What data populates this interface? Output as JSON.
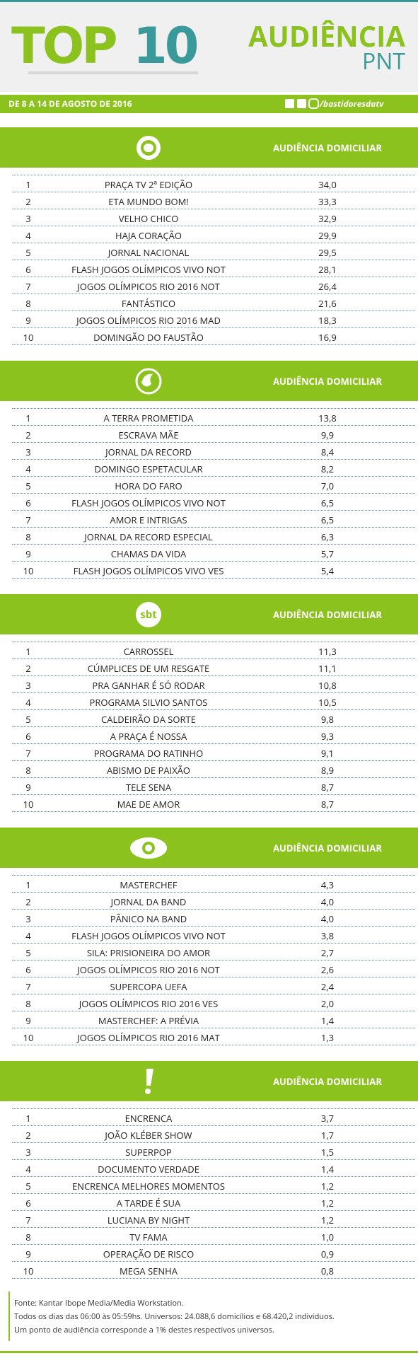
{
  "header": {
    "title_top": "TOP",
    "title_num": "10",
    "brand_line1": "AUDIÊNCIA",
    "brand_line2": "PNT",
    "period": "DE 8 A 14 DE AGOSTO DE 2016",
    "handle": "/bastidoresdatv"
  },
  "sections": [
    {
      "heading": "AUDIÊNCIA DOMICILIAR",
      "rows": [
        [
          1,
          "PRAÇA TV 2ª EDIÇÃO",
          "34,0"
        ],
        [
          2,
          "ETA MUNDO BOM!",
          "33,3"
        ],
        [
          3,
          "VELHO CHICO",
          "32,9"
        ],
        [
          4,
          "HAJA CORAÇÃO",
          "29,9"
        ],
        [
          5,
          "JORNAL NACIONAL",
          "29,5"
        ],
        [
          6,
          "FLASH JOGOS OLÍMPICOS VIVO NOT",
          "28,1"
        ],
        [
          7,
          "JOGOS OLÍMPICOS RIO 2016 NOT",
          "26,4"
        ],
        [
          8,
          "FANTÁSTICO",
          "21,6"
        ],
        [
          9,
          "JOGOS OLÍMPICOS RIO 2016 MAD",
          "18,3"
        ],
        [
          10,
          "DOMINGÃO DO FAUSTÃO",
          "16,9"
        ]
      ]
    },
    {
      "heading": "AUDIÊNCIA DOMICILIAR",
      "rows": [
        [
          1,
          "A TERRA PROMETIDA",
          "13,8"
        ],
        [
          2,
          "ESCRAVA MÃE",
          "9,9"
        ],
        [
          3,
          "JORNAL DA RECORD",
          "8,4"
        ],
        [
          4,
          "DOMINGO ESPETACULAR",
          "8,2"
        ],
        [
          5,
          "HORA DO FARO",
          "7,0"
        ],
        [
          6,
          "FLASH JOGOS OLÍMPICOS VIVO NOT",
          "6,5"
        ],
        [
          7,
          "AMOR E INTRIGAS",
          "6,5"
        ],
        [
          8,
          "JORNAL DA RECORD ESPECIAL",
          "6,3"
        ],
        [
          9,
          "CHAMAS DA VIDA",
          "5,7"
        ],
        [
          10,
          "FLASH JOGOS OLÍMPICOS VIVO VES",
          "5,4"
        ]
      ]
    },
    {
      "heading": "AUDIÊNCIA DOMICILIAR",
      "logo": "sbt",
      "rows": [
        [
          1,
          "CARROSSEL",
          "11,3"
        ],
        [
          2,
          "CÚMPLICES DE UM RESGATE",
          "11,1"
        ],
        [
          3,
          "PRA GANHAR É SÓ RODAR",
          "10,8"
        ],
        [
          4,
          "PROGRAMA SILVIO SANTOS",
          "10,5"
        ],
        [
          5,
          "CALDEIRÃO DA SORTE",
          "9,8"
        ],
        [
          6,
          "A PRAÇA É NOSSA",
          "9,3"
        ],
        [
          7,
          "PROGRAMA DO RATINHO",
          "9,1"
        ],
        [
          8,
          "ABISMO DE PAIXÃO",
          "8,9"
        ],
        [
          9,
          "TELE SENA",
          "8,7"
        ],
        [
          10,
          "MAE DE AMOR",
          "8,7"
        ]
      ]
    },
    {
      "heading": "AUDIÊNCIA DOMICILIAR",
      "rows": [
        [
          1,
          "MASTERCHEF",
          "4,3"
        ],
        [
          2,
          "JORNAL DA BAND",
          "4,0"
        ],
        [
          3,
          "PÂNICO NA BAND",
          "4,0"
        ],
        [
          4,
          "FLASH JOGOS OLÍMPICOS VIVO NOT",
          "3,8"
        ],
        [
          5,
          "SILA: PRISIONEIRA DO AMOR",
          "2,7"
        ],
        [
          6,
          "JOGOS OLÍMPICOS RIO 2016 NOT",
          "2,6"
        ],
        [
          7,
          "SUPERCOPA UEFA",
          "2,4"
        ],
        [
          8,
          "JOGOS OLÍMPICOS RIO 2016 VES",
          "2,0"
        ],
        [
          9,
          "MASTERCHEF: A PRÉVIA",
          "1,4"
        ],
        [
          10,
          "JOGOS OLÍMPICOS RIO 2016 MAT",
          "1,3"
        ]
      ]
    },
    {
      "heading": "AUDIÊNCIA DOMICILIAR",
      "rows": [
        [
          1,
          "ENCRENCA",
          "3,7"
        ],
        [
          2,
          "JOÃO KLÉBER SHOW",
          "1,7"
        ],
        [
          3,
          "SUPERPOP",
          "1,5"
        ],
        [
          4,
          "DOCUMENTO VERDADE",
          "1,4"
        ],
        [
          5,
          "ENCRENCA MELHORES MOMENTOS",
          "1,2"
        ],
        [
          6,
          "A TARDE É SUA",
          "1,2"
        ],
        [
          7,
          "LUCIANA BY NIGHT",
          "1,2"
        ],
        [
          8,
          "TV FAMA",
          "1,0"
        ],
        [
          9,
          "OPERAÇÃO DE RISCO",
          "0,9"
        ],
        [
          10,
          "MEGA SENHA",
          "0,8"
        ]
      ]
    }
  ],
  "footer": [
    "Fonte: Kantar Ibope Media/Media Workstation.",
    "Todos os dias das 06:00 às 05:59hs. Universos: 24.088,6 domicílios e 68.420,2 indivíduos.",
    "Um ponto de audiência corresponde a 1% destes respectivos universos."
  ]
}
